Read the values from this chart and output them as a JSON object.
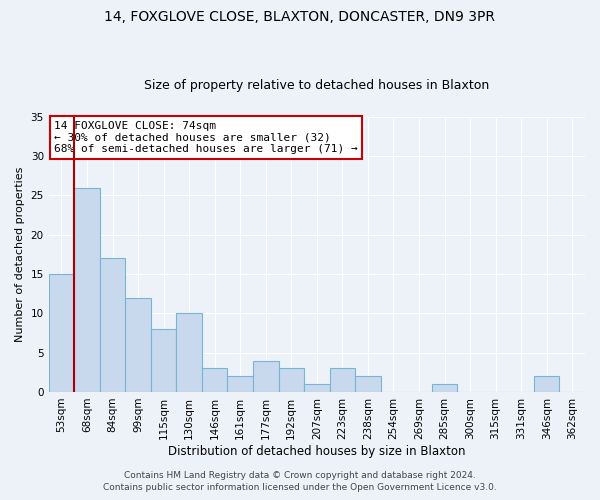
{
  "title1": "14, FOXGLOVE CLOSE, BLAXTON, DONCASTER, DN9 3PR",
  "title2": "Size of property relative to detached houses in Blaxton",
  "xlabel": "Distribution of detached houses by size in Blaxton",
  "ylabel": "Number of detached properties",
  "bin_labels": [
    "53sqm",
    "68sqm",
    "84sqm",
    "99sqm",
    "115sqm",
    "130sqm",
    "146sqm",
    "161sqm",
    "177sqm",
    "192sqm",
    "207sqm",
    "223sqm",
    "238sqm",
    "254sqm",
    "269sqm",
    "285sqm",
    "300sqm",
    "315sqm",
    "331sqm",
    "346sqm",
    "362sqm"
  ],
  "bar_values": [
    15,
    26,
    17,
    12,
    8,
    10,
    3,
    2,
    4,
    3,
    1,
    3,
    2,
    0,
    0,
    1,
    0,
    0,
    0,
    2,
    0
  ],
  "bar_color": "#c8d9ee",
  "bar_edge_color": "#7ab4d4",
  "vline_color": "#aa0000",
  "ylim": [
    0,
    35
  ],
  "yticks": [
    0,
    5,
    10,
    15,
    20,
    25,
    30,
    35
  ],
  "annotation_line1": "14 FOXGLOVE CLOSE: 74sqm",
  "annotation_line2": "← 30% of detached houses are smaller (32)",
  "annotation_line3": "68% of semi-detached houses are larger (71) →",
  "annotation_box_color": "#ffffff",
  "annotation_box_edge": "#cc0000",
  "footer1": "Contains HM Land Registry data © Crown copyright and database right 2024.",
  "footer2": "Contains public sector information licensed under the Open Government Licence v3.0.",
  "background_color": "#edf2f9",
  "title1_fontsize": 10,
  "title2_fontsize": 9,
  "xlabel_fontsize": 8.5,
  "ylabel_fontsize": 8,
  "tick_fontsize": 7.5,
  "annotation_fontsize": 8,
  "footer_fontsize": 6.5
}
